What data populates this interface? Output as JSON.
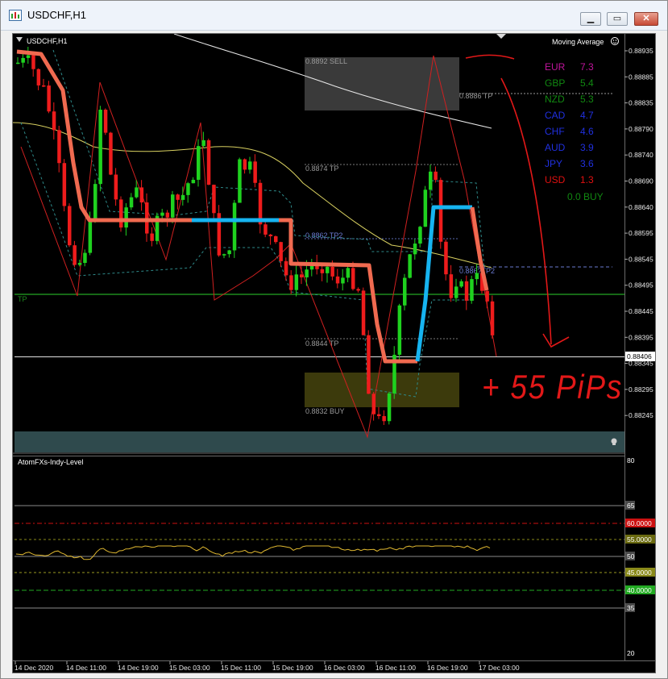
{
  "window": {
    "title": "USDCHF,H1",
    "controls": {
      "minimize": "▁",
      "restore": "▭",
      "close": "✕"
    }
  },
  "chart": {
    "symbol_label": "USDCHF,H1",
    "indicator_label": "Moving Average",
    "current_price": "0.88406",
    "price_ticks": [
      "0.88935",
      "0.88885",
      "0.88835",
      "0.88790",
      "0.88740",
      "0.88690",
      "0.88640",
      "0.88595",
      "0.88545",
      "0.88495",
      "0.88445",
      "0.88395",
      "0.88345",
      "0.88295",
      "0.88245"
    ],
    "time_ticks": [
      "14 Dec 2020",
      "14 Dec 11:00",
      "14 Dec 19:00",
      "15 Dec 03:00",
      "15 Dec 11:00",
      "15 Dec 19:00",
      "16 Dec 03:00",
      "16 Dec 11:00",
      "16 Dec 19:00",
      "17 Dec 03:00"
    ],
    "levels": {
      "sell": "0.8892 SELL",
      "tp_8886": "0.8886 TP",
      "tp_8874": "0.8874 TP",
      "tp2_8862": "0.8862 TP2",
      "tp2_right": "0.886?TP2",
      "tp_8844": "0.8844 TP",
      "buy": "0.8832 BUY",
      "tp_line": "TP"
    },
    "strength_table": [
      {
        "currency": "EUR",
        "value": "7.3",
        "color": "#c0149c"
      },
      {
        "currency": "GBP",
        "value": "5.4",
        "color": "#118811"
      },
      {
        "currency": "NZD",
        "value": "5.3",
        "color": "#118811"
      },
      {
        "currency": "CAD",
        "value": "4.7",
        "color": "#2030e0"
      },
      {
        "currency": "CHF",
        "value": "4.6",
        "color": "#2030e0"
      },
      {
        "currency": "AUD",
        "value": "3.9",
        "color": "#2030e0"
      },
      {
        "currency": "JPY",
        "value": "3.6",
        "color": "#2030e0"
      },
      {
        "currency": "USD",
        "value": "1.3",
        "color": "#e01010"
      }
    ],
    "signal": "0.0 BUY",
    "annotation": "+ 55 PiPs"
  },
  "oscillator": {
    "name": "AtomFXs-Indy-Level",
    "ticks": [
      "80",
      "65",
      "60.0000",
      "55.0000",
      "50",
      "45.0000",
      "40.0000",
      "35",
      "20"
    ],
    "level_colors": {
      "60": "#cc1111",
      "55": "#8a8a1a",
      "45": "#9a9a20",
      "40": "#22aa22"
    }
  },
  "colors": {
    "bull": "#1fd21f",
    "bear": "#ee1c1c",
    "trend_line_down": "#f06a50",
    "trend_line_up": "#16b4f0",
    "ma_slow": "#e8e8e8",
    "ma_mid": "#d8d060",
    "osc_line": "#e0b830"
  }
}
